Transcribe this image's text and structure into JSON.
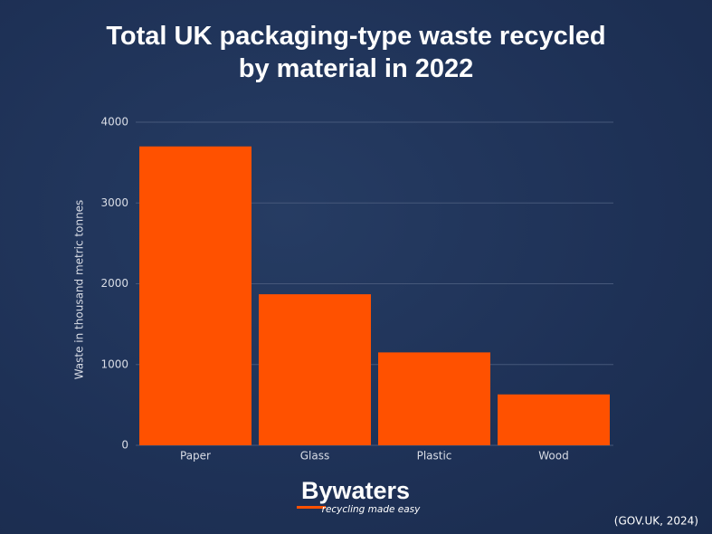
{
  "chart_data": {
    "type": "bar",
    "title": "Total UK packaging-type waste recycled by material in 2022",
    "y_label": "Waste in thousand metric tonnes",
    "categories": [
      "Paper",
      "Glass",
      "Plastic",
      "Wood"
    ],
    "values": [
      3700,
      1870,
      1150,
      630
    ],
    "color": "#ff5100",
    "ylim": [
      0,
      4000
    ],
    "yticks": [
      0,
      1000,
      2000,
      3000,
      4000
    ],
    "grid": true
  },
  "logo": {
    "name": "Bywaters",
    "tagline": "recycling made easy"
  },
  "source": "(GOV.UK, 2024)"
}
